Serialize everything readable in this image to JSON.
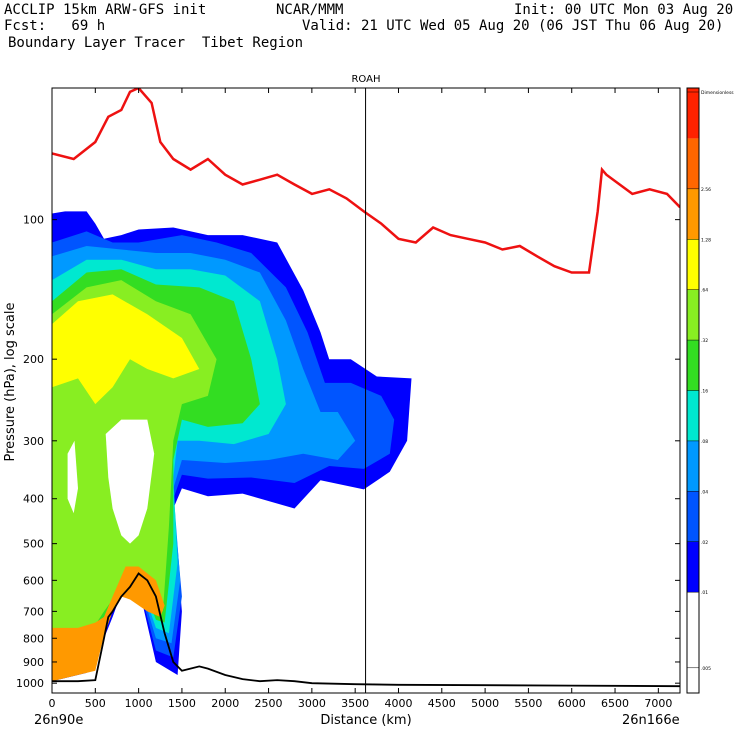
{
  "header": {
    "line1_left": "ACCLIP 15km ARW-GFS init",
    "line1_mid": "NCAR/MMM",
    "line1_right": "Init: 00 UTC Mon 03 Aug 20",
    "line2_left": "Fcst:   69 h",
    "line2_right": "Valid: 21 UTC Wed 05 Aug 20 (06 JST Thu 06 Aug 20)",
    "line3_left": "Boundary Layer Tracer  Tibet Region"
  },
  "chart_data": {
    "type": "heatmap",
    "title": "ROAH",
    "xlabel": "Distance (km)",
    "ylabel": "Pressure (hPa), log scale",
    "x_left_label": "26n90e",
    "x_right_label": "26n166e",
    "xlim": [
      0,
      7250
    ],
    "ylim": [
      1050,
      52
    ],
    "y_scale": "log",
    "x_ticks": [
      0,
      500,
      1000,
      1500,
      2000,
      2500,
      3000,
      3500,
      4000,
      4500,
      5000,
      5500,
      6000,
      6500,
      7000
    ],
    "y_ticks": [
      100,
      200,
      300,
      400,
      500,
      600,
      700,
      800,
      900,
      1000
    ],
    "vertical_line_km": 3620,
    "colorbar": {
      "colors": [
        "#ffffff",
        "#ffffff",
        "#0000ff",
        "#0055ff",
        "#0099ff",
        "#00e8d0",
        "#33dd22",
        "#88ee22",
        "#ffff00",
        "#ff9900",
        "#ff6600",
        "#ff2200"
      ],
      "labels": [
        ".005",
        ".01",
        ".02",
        ".04",
        ".08",
        ".16",
        ".32",
        ".64",
        "1.28",
        "2.56",
        "Dimensionless"
      ]
    },
    "tropopause_line": {
      "name": "tropopause",
      "color": "#ee1111",
      "x": [
        0,
        250,
        500,
        650,
        800,
        900,
        1000,
        1150,
        1250,
        1400,
        1600,
        1800,
        2000,
        2200,
        2400,
        2600,
        2800,
        3000,
        3200,
        3400,
        3600,
        3800,
        4000,
        4200,
        4400,
        4600,
        4800,
        5000,
        5200,
        5400,
        5600,
        5800,
        6000,
        6200,
        6300,
        6350,
        6400,
        6700,
        6900,
        7100,
        7250
      ],
      "y": [
        72,
        74,
        68,
        60,
        58,
        53,
        52,
        56,
        68,
        74,
        78,
        74,
        80,
        84,
        82,
        80,
        84,
        88,
        86,
        90,
        96,
        102,
        110,
        112,
        104,
        108,
        110,
        112,
        116,
        114,
        120,
        126,
        130,
        130,
        96,
        78,
        80,
        88,
        86,
        88,
        94
      ]
    },
    "terrain_line": {
      "name": "terrain",
      "color": "#000000",
      "x": [
        0,
        300,
        500,
        600,
        650,
        700,
        800,
        900,
        1000,
        1100,
        1200,
        1300,
        1400,
        1500,
        1700,
        1800,
        2000,
        2200,
        2400,
        2600,
        2800,
        3000,
        3500,
        4000,
        5000,
        6000,
        7250
      ],
      "y": [
        990,
        990,
        985,
        800,
        720,
        700,
        650,
        620,
        580,
        600,
        650,
        780,
        900,
        940,
        920,
        930,
        960,
        980,
        990,
        985,
        990,
        1000,
        1005,
        1008,
        1010,
        1012,
        1015
      ]
    },
    "tracer_regions": [
      {
        "level": 1,
        "value": ">0.01",
        "color": "#0000ff",
        "points": [
          [
            0,
            97
          ],
          [
            150,
            96
          ],
          [
            400,
            96
          ],
          [
            500,
            102
          ],
          [
            600,
            110
          ],
          [
            800,
            108
          ],
          [
            1000,
            105
          ],
          [
            1400,
            104
          ],
          [
            1800,
            108
          ],
          [
            2200,
            108
          ],
          [
            2600,
            112
          ],
          [
            2900,
            142
          ],
          [
            3100,
            175
          ],
          [
            3200,
            200
          ],
          [
            3450,
            200
          ],
          [
            3750,
            218
          ],
          [
            4150,
            220
          ],
          [
            4100,
            300
          ],
          [
            3900,
            350
          ],
          [
            3600,
            382
          ],
          [
            3100,
            365
          ],
          [
            2800,
            420
          ],
          [
            2200,
            390
          ],
          [
            1800,
            395
          ],
          [
            1500,
            380
          ],
          [
            1400,
            420
          ],
          [
            1500,
            700
          ],
          [
            1450,
            960
          ],
          [
            1200,
            900
          ],
          [
            1000,
            620
          ],
          [
            800,
            640
          ],
          [
            700,
            720
          ],
          [
            600,
            800
          ],
          [
            400,
            950
          ],
          [
            0,
            990
          ]
        ]
      },
      {
        "level": 2,
        "value": ">0.02",
        "color": "#0055ff",
        "points": [
          [
            0,
            112
          ],
          [
            400,
            106
          ],
          [
            700,
            112
          ],
          [
            1000,
            112
          ],
          [
            1500,
            108
          ],
          [
            1900,
            112
          ],
          [
            2300,
            118
          ],
          [
            2700,
            140
          ],
          [
            2950,
            175
          ],
          [
            3150,
            225
          ],
          [
            3450,
            225
          ],
          [
            3800,
            240
          ],
          [
            3950,
            270
          ],
          [
            3900,
            320
          ],
          [
            3600,
            345
          ],
          [
            3200,
            340
          ],
          [
            2800,
            370
          ],
          [
            2300,
            360
          ],
          [
            1800,
            362
          ],
          [
            1500,
            355
          ],
          [
            1400,
            400
          ],
          [
            1500,
            650
          ],
          [
            1400,
            880
          ],
          [
            1200,
            850
          ],
          [
            1000,
            610
          ],
          [
            800,
            630
          ],
          [
            700,
            700
          ],
          [
            600,
            780
          ],
          [
            400,
            920
          ],
          [
            0,
            975
          ]
        ]
      },
      {
        "level": 3,
        "value": ">0.04",
        "color": "#0099ff",
        "points": [
          [
            0,
            120
          ],
          [
            400,
            114
          ],
          [
            800,
            116
          ],
          [
            1200,
            118
          ],
          [
            1600,
            118
          ],
          [
            2000,
            122
          ],
          [
            2400,
            130
          ],
          [
            2700,
            165
          ],
          [
            2900,
            210
          ],
          [
            3100,
            260
          ],
          [
            3300,
            260
          ],
          [
            3500,
            300
          ],
          [
            3300,
            330
          ],
          [
            2900,
            320
          ],
          [
            2500,
            330
          ],
          [
            2000,
            335
          ],
          [
            1500,
            330
          ],
          [
            1400,
            380
          ],
          [
            1480,
            600
          ],
          [
            1380,
            820
          ],
          [
            1200,
            800
          ],
          [
            1000,
            600
          ],
          [
            800,
            620
          ],
          [
            700,
            690
          ],
          [
            600,
            760
          ],
          [
            400,
            880
          ],
          [
            0,
            950
          ]
        ]
      },
      {
        "level": 4,
        "value": ">0.08",
        "color": "#00e8d0",
        "points": [
          [
            0,
            135
          ],
          [
            400,
            122
          ],
          [
            800,
            122
          ],
          [
            1200,
            128
          ],
          [
            1600,
            128
          ],
          [
            2000,
            132
          ],
          [
            2400,
            150
          ],
          [
            2600,
            200
          ],
          [
            2700,
            250
          ],
          [
            2500,
            290
          ],
          [
            2100,
            305
          ],
          [
            1700,
            300
          ],
          [
            1450,
            300
          ],
          [
            1400,
            360
          ],
          [
            1450,
            550
          ],
          [
            1350,
            780
          ],
          [
            1200,
            760
          ],
          [
            1000,
            590
          ],
          [
            800,
            610
          ],
          [
            700,
            680
          ],
          [
            600,
            740
          ],
          [
            400,
            850
          ],
          [
            0,
            930
          ]
        ]
      },
      {
        "level": 5,
        "value": ">0.16",
        "color": "#33dd22",
        "points": [
          [
            0,
            150
          ],
          [
            400,
            130
          ],
          [
            800,
            128
          ],
          [
            1200,
            138
          ],
          [
            1700,
            140
          ],
          [
            2100,
            150
          ],
          [
            2300,
            200
          ],
          [
            2400,
            250
          ],
          [
            2200,
            275
          ],
          [
            1800,
            280
          ],
          [
            1500,
            270
          ],
          [
            1400,
            330
          ],
          [
            1400,
            500
          ],
          [
            1300,
            740
          ],
          [
            1200,
            730
          ],
          [
            1000,
            580
          ],
          [
            800,
            600
          ],
          [
            700,
            670
          ],
          [
            600,
            720
          ],
          [
            400,
            820
          ],
          [
            0,
            900
          ]
        ]
      },
      {
        "level": 6,
        "value": ">0.32",
        "color": "#88ee22",
        "points": [
          [
            0,
            160
          ],
          [
            400,
            140
          ],
          [
            800,
            135
          ],
          [
            1200,
            150
          ],
          [
            1600,
            160
          ],
          [
            1900,
            200
          ],
          [
            1800,
            240
          ],
          [
            1500,
            250
          ],
          [
            1400,
            300
          ],
          [
            1350,
            460
          ],
          [
            1280,
            700
          ],
          [
            1150,
            690
          ],
          [
            1000,
            570
          ],
          [
            800,
            590
          ],
          [
            700,
            660
          ],
          [
            600,
            700
          ],
          [
            400,
            800
          ],
          [
            0,
            880
          ]
        ]
      },
      {
        "level": 7,
        "value": ">0.64",
        "color": "#ffff00",
        "points": [
          [
            0,
            168
          ],
          [
            300,
            150
          ],
          [
            700,
            145
          ],
          [
            1100,
            160
          ],
          [
            1500,
            180
          ],
          [
            1700,
            210
          ],
          [
            1400,
            220
          ],
          [
            1100,
            210
          ],
          [
            900,
            200
          ],
          [
            700,
            230
          ],
          [
            500,
            250
          ],
          [
            300,
            220
          ],
          [
            0,
            230
          ]
        ]
      },
      {
        "level": 8,
        "value": ">1.28",
        "color": "#ff9900",
        "points": [
          [
            0,
            760
          ],
          [
            300,
            760
          ],
          [
            500,
            740
          ],
          [
            600,
            720
          ],
          [
            700,
            650
          ],
          [
            850,
            560
          ],
          [
            1000,
            560
          ],
          [
            1200,
            600
          ],
          [
            1300,
            680
          ],
          [
            1250,
            720
          ],
          [
            1100,
            700
          ],
          [
            900,
            660
          ],
          [
            800,
            650
          ],
          [
            700,
            700
          ],
          [
            600,
            790
          ],
          [
            500,
            940
          ],
          [
            0,
            990
          ]
        ]
      }
    ],
    "cutouts": [
      {
        "color": "#ffffff",
        "points": [
          [
            620,
            290
          ],
          [
            800,
            270
          ],
          [
            1100,
            270
          ],
          [
            1180,
            320
          ],
          [
            1100,
            420
          ],
          [
            1000,
            480
          ],
          [
            900,
            500
          ],
          [
            800,
            480
          ],
          [
            700,
            420
          ],
          [
            650,
            360
          ]
        ]
      },
      {
        "color": "#ffffff",
        "points": [
          [
            180,
            320
          ],
          [
            260,
            300
          ],
          [
            300,
            380
          ],
          [
            250,
            430
          ],
          [
            180,
            400
          ]
        ]
      }
    ]
  }
}
